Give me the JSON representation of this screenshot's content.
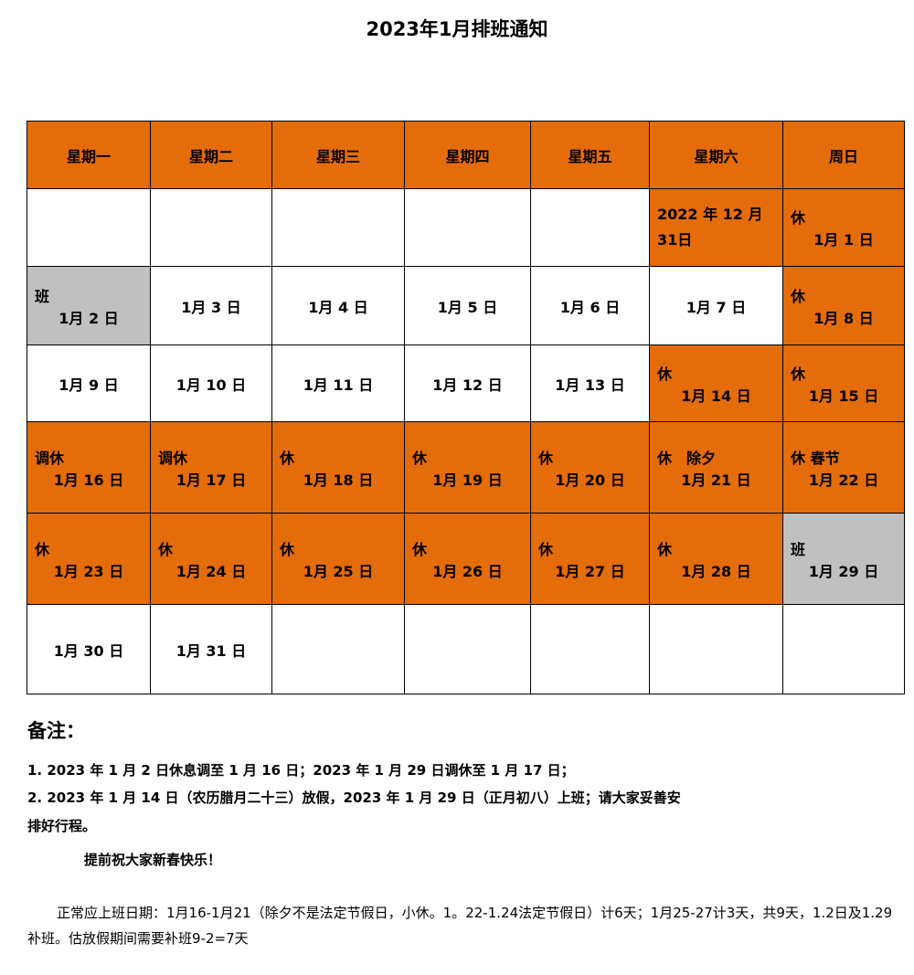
{
  "title": "2023年1月排班通知",
  "colors": {
    "holiday": "#E46C0A",
    "workday": "#C0C0C0",
    "normal": "#FFFFFF"
  },
  "weekdays": [
    "星期一",
    "星期二",
    "星期三",
    "星期四",
    "星期五",
    "星期六",
    "周日"
  ],
  "rows": [
    [
      {
        "t": "",
        "d": "",
        "c": ""
      },
      {
        "t": "",
        "d": "",
        "c": ""
      },
      {
        "t": "",
        "d": "",
        "c": ""
      },
      {
        "t": "",
        "d": "",
        "c": ""
      },
      {
        "t": "",
        "d": "",
        "c": ""
      },
      {
        "t": "",
        "d": "2022 年 12 月 31日",
        "c": "o"
      },
      {
        "t": "休",
        "d": "1月 1 日",
        "c": "o"
      }
    ],
    [
      {
        "t": "班",
        "d": "1月 2 日",
        "c": "g"
      },
      {
        "t": "",
        "d": "1月 3 日",
        "c": ""
      },
      {
        "t": "",
        "d": "1月 4 日",
        "c": ""
      },
      {
        "t": "",
        "d": "1月 5 日",
        "c": ""
      },
      {
        "t": "",
        "d": "1月 6 日",
        "c": ""
      },
      {
        "t": "",
        "d": "1月 7 日",
        "c": ""
      },
      {
        "t": "休",
        "d": "1月 8 日",
        "c": "o"
      }
    ],
    [
      {
        "t": "",
        "d": "1月 9 日",
        "c": ""
      },
      {
        "t": "",
        "d": "1月 10 日",
        "c": ""
      },
      {
        "t": "",
        "d": "1月 11 日",
        "c": ""
      },
      {
        "t": "",
        "d": "1月 12 日",
        "c": ""
      },
      {
        "t": "",
        "d": "1月 13 日",
        "c": ""
      },
      {
        "t": "休",
        "d": "1月 14 日",
        "c": "o"
      },
      {
        "t": "休",
        "d": "1月 15 日",
        "c": "o"
      }
    ],
    [
      {
        "t": "调休",
        "d": "1月 16 日",
        "c": "o"
      },
      {
        "t": "调休",
        "d": "1月 17 日",
        "c": "o"
      },
      {
        "t": "休",
        "d": "1月 18 日",
        "c": "o"
      },
      {
        "t": "休",
        "d": "1月 19 日",
        "c": "o"
      },
      {
        "t": "休",
        "d": "1月 20 日",
        "c": "o"
      },
      {
        "t": "休　除夕",
        "d": "1月 21 日",
        "c": "o"
      },
      {
        "t": "休 春节",
        "d": "1月 22 日",
        "c": "o"
      }
    ],
    [
      {
        "t": "休",
        "d": "1月 23 日",
        "c": "o"
      },
      {
        "t": "休",
        "d": "1月 24 日",
        "c": "o"
      },
      {
        "t": "休",
        "d": "1月 25 日",
        "c": "o"
      },
      {
        "t": "休",
        "d": "1月 26 日",
        "c": "o"
      },
      {
        "t": "休",
        "d": "1月 27 日",
        "c": "o"
      },
      {
        "t": "休",
        "d": "1月 28 日",
        "c": "o"
      },
      {
        "t": "班",
        "d": "1月 29 日",
        "c": "g"
      }
    ],
    [
      {
        "t": "",
        "d": "1月 30 日",
        "c": ""
      },
      {
        "t": "",
        "d": "1月 31 日",
        "c": ""
      },
      {
        "t": "",
        "d": "",
        "c": ""
      },
      {
        "t": "",
        "d": "",
        "c": ""
      },
      {
        "t": "",
        "d": "",
        "c": ""
      },
      {
        "t": "",
        "d": "",
        "c": ""
      },
      {
        "t": "",
        "d": "",
        "c": ""
      }
    ]
  ],
  "notes": {
    "heading": "备注：",
    "line1": "1. 2023 年 1 月 2 日休息调至 1 月 16 日；2023 年 1 月 29 日调休至 1 月 17 日；",
    "line2": "2. 2023 年 1 月 14 日（农历腊月二十三）放假，2023 年 1 月 29 日（正月初八）上班；请大家妥善安",
    "line3": "排好行程。",
    "greeting": "提前祝大家新春快乐！"
  },
  "footnote": "正常应上班日期：1月16-1月21（除夕不是法定节假日，小休。1。22-1.24法定节假日）计6天；1月25-27计3天，共9天，1.2日及1.29补班。估放假期间需要补班9-2=7天"
}
